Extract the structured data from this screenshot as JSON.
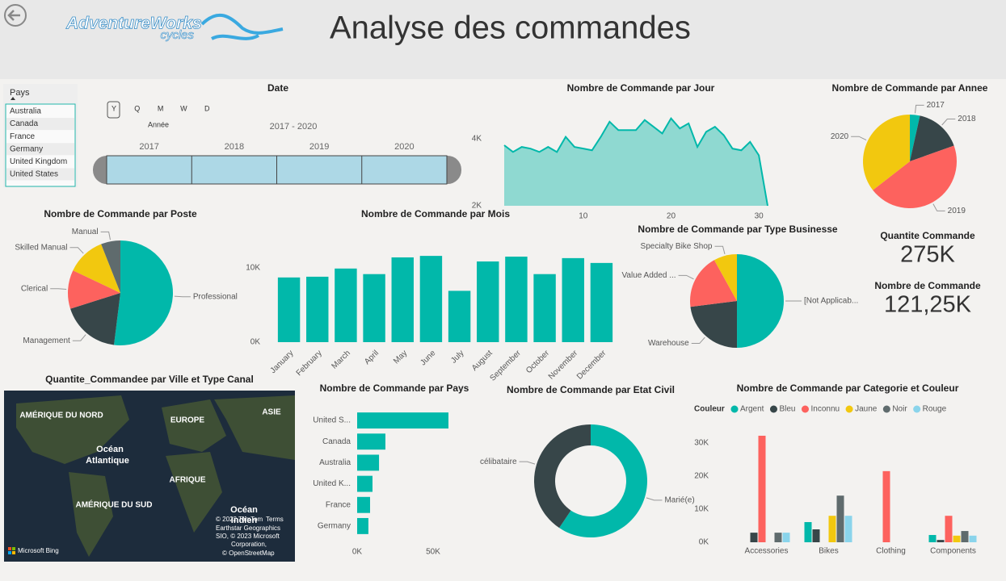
{
  "header": {
    "title": "Analyse des commandes",
    "logo": "AdventureWorks",
    "logo_sub": "cycles"
  },
  "slicer_pays": {
    "title": "Pays",
    "items": [
      "Australia",
      "Canada",
      "France",
      "Germany",
      "United Kingdom",
      "United States"
    ]
  },
  "slicer_date": {
    "title": "Date",
    "levels": [
      "Y",
      "Q",
      "M",
      "W",
      "D"
    ],
    "level_label": "Année",
    "range": "2017 - 2020",
    "years": [
      "2017",
      "2018",
      "2019",
      "2020"
    ]
  },
  "cards": [
    {
      "label": "Quantite Commande",
      "value": "275K"
    },
    {
      "label": "Nombre de Commande",
      "value": "121,25K"
    }
  ],
  "map": {
    "title": "Quantite_Commandee par Ville et Type Canal",
    "labels": [
      "AMÉRIQUE DU NORD",
      "EUROPE",
      "ASIE",
      "Océan",
      "Atlantique",
      "AFRIQUE",
      "AMÉRIQUE DU SUD",
      "Océan",
      "Indien"
    ],
    "attribution": [
      "© 2022 TomTom",
      "Terms",
      "Earthstar Geographics",
      "SIO, © 2023 Microsoft",
      "Corporation,",
      "© OpenStreetMap"
    ],
    "provider": "Microsoft Bing"
  },
  "chart_data": [
    {
      "type": "area",
      "title": "Nombre de Commande par Jour",
      "x": [
        1,
        2,
        3,
        4,
        5,
        6,
        7,
        8,
        9,
        10,
        11,
        12,
        13,
        14,
        15,
        16,
        17,
        18,
        19,
        20,
        21,
        22,
        23,
        24,
        25,
        26,
        27,
        28,
        29,
        30,
        31
      ],
      "values": [
        3800,
        3600,
        3750,
        3700,
        3600,
        3750,
        3600,
        4050,
        3750,
        3700,
        3650,
        4050,
        4500,
        4250,
        4250,
        4250,
        4550,
        4350,
        4150,
        4600,
        4300,
        4450,
        3750,
        4200,
        4350,
        4100,
        3700,
        3650,
        3900,
        3500,
        2000
      ],
      "xlim": [
        1,
        31
      ],
      "xticks": [
        10,
        20,
        30
      ],
      "ylim": [
        2000,
        5000
      ],
      "yticks": [
        {
          "value": 2000,
          "label": "2K"
        },
        {
          "value": 4000,
          "label": "4K"
        }
      ],
      "color": "#01b8aa",
      "fill": "#8fd9d1",
      "grid": false
    },
    {
      "type": "pie",
      "title": "Nombre de Commande par Annee",
      "categories": [
        "2017",
        "2018",
        "2019",
        "2020"
      ],
      "values": [
        4200,
        19500,
        54500,
        43050
      ],
      "colors": [
        "#01b8aa",
        "#374649",
        "#fd625e",
        "#f2c80f"
      ]
    },
    {
      "type": "pie",
      "title": "Nombre de Commande par Poste",
      "categories": [
        "Professional",
        "Management",
        "Clerical",
        "Skilled Manual",
        "Manual"
      ],
      "values": [
        63000,
        22000,
        14500,
        14500,
        7250
      ],
      "colors": [
        "#01b8aa",
        "#374649",
        "#fd625e",
        "#f2c80f",
        "#5f6b6d"
      ]
    },
    {
      "type": "bar",
      "title": "Nombre de Commande par Mois",
      "categories": [
        "January",
        "February",
        "March",
        "April",
        "May",
        "June",
        "July",
        "August",
        "September",
        "October",
        "November",
        "December"
      ],
      "values": [
        8700,
        8800,
        9900,
        9150,
        11400,
        11600,
        6900,
        10850,
        11500,
        9150,
        11300,
        10650
      ],
      "ylim": [
        0,
        14000
      ],
      "yticks": [
        {
          "value": 0,
          "label": "0K"
        },
        {
          "value": 10000,
          "label": "10K"
        }
      ],
      "color": "#01b8aa",
      "grid": false
    },
    {
      "type": "pie",
      "title": "Nombre de Commande par Type Businesse",
      "categories": [
        "[Not Applicab...",
        "Warehouse",
        "Value Added ...",
        "Specialty Bike Shop"
      ],
      "values": [
        60600,
        27900,
        23000,
        9750
      ],
      "colors": [
        "#01b8aa",
        "#374649",
        "#fd625e",
        "#f2c80f"
      ]
    },
    {
      "type": "barh",
      "title": "Nombre de Commande par Pays",
      "categories": [
        "United S...",
        "Canada",
        "Australia",
        "United K...",
        "France",
        "Germany"
      ],
      "values": [
        60100,
        18600,
        14400,
        10100,
        8500,
        7400
      ],
      "xlim": [
        0,
        65000
      ],
      "xticks": [
        {
          "value": 0,
          "label": "0K"
        },
        {
          "value": 50000,
          "label": "50K"
        }
      ],
      "color": "#01b8aa",
      "grid": false
    },
    {
      "type": "donut",
      "title": "Nombre de Commande par Etat Civil",
      "categories": [
        "Marié(e)",
        "célibataire"
      ],
      "values": [
        72000,
        49250
      ],
      "colors": [
        "#01b8aa",
        "#374649"
      ]
    },
    {
      "type": "grouped",
      "title": "Nombre de Commande par Categorie et Couleur",
      "legend_title": "Couleur",
      "categories": [
        "Accessories",
        "Bikes",
        "Clothing",
        "Components"
      ],
      "series": [
        {
          "name": "Argent",
          "color": "#01b8aa",
          "values": [
            null,
            6100,
            null,
            2200
          ]
        },
        {
          "name": "Bleu",
          "color": "#374649",
          "values": [
            2900,
            3900,
            null,
            700
          ]
        },
        {
          "name": "Inconnu",
          "color": "#fd625e",
          "values": [
            32200,
            null,
            21500,
            8000
          ]
        },
        {
          "name": "Jaune",
          "color": "#f2c80f",
          "values": [
            null,
            8000,
            null,
            2000
          ]
        },
        {
          "name": "Noir",
          "color": "#5f6b6d",
          "values": [
            2900,
            14100,
            null,
            3400
          ]
        },
        {
          "name": "Rouge",
          "color": "#8ad4eb",
          "values": [
            2900,
            8000,
            null,
            2000
          ]
        }
      ],
      "ylim": [
        0,
        35000
      ],
      "yticks": [
        {
          "value": 0,
          "label": "0K"
        },
        {
          "value": 10000,
          "label": "10K"
        },
        {
          "value": 20000,
          "label": "20K"
        },
        {
          "value": 30000,
          "label": "30K"
        }
      ],
      "grid": false
    }
  ]
}
